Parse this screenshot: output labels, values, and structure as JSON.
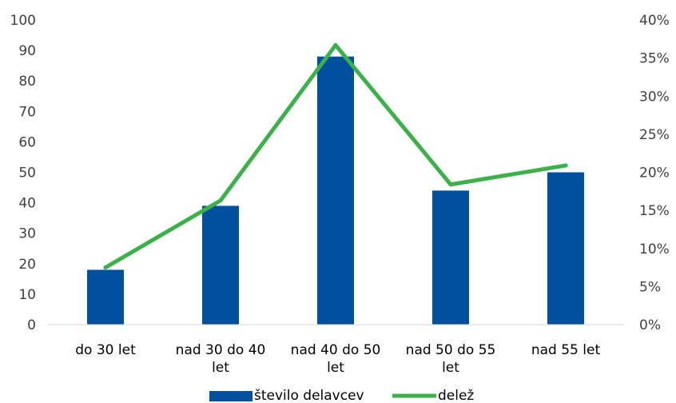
{
  "chart_data": {
    "type": "bar",
    "categories": [
      [
        "do 30 let"
      ],
      [
        "nad 30 do 40",
        "let"
      ],
      [
        "nad 40 do 50",
        "let"
      ],
      [
        "nad 50 do 55",
        "let"
      ],
      [
        "nad 55 let"
      ]
    ],
    "series": [
      {
        "name": "število delavcev",
        "type": "bar",
        "axis": "left",
        "color": "#0050A0",
        "values": [
          18,
          39,
          88,
          44,
          50
        ]
      },
      {
        "name": "delež",
        "type": "line",
        "axis": "right",
        "color": "#3CB14A",
        "values": [
          0.075,
          0.163,
          0.367,
          0.184,
          0.209
        ]
      }
    ],
    "y_left": {
      "min": 0,
      "max": 100,
      "step": 10,
      "ticks": [
        "0",
        "10",
        "20",
        "30",
        "40",
        "50",
        "60",
        "70",
        "80",
        "90",
        "100"
      ]
    },
    "y_right": {
      "min": 0,
      "max": 0.4,
      "step": 0.05,
      "ticks": [
        "0%",
        "5%",
        "10%",
        "15%",
        "20%",
        "25%",
        "30%",
        "35%",
        "40%"
      ]
    },
    "grid": false,
    "legend_position": "bottom"
  }
}
